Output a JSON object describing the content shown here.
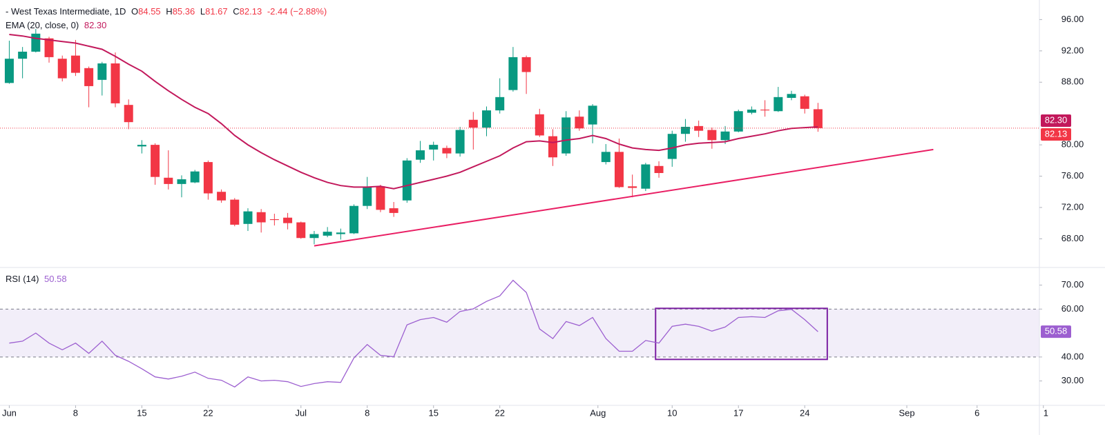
{
  "chart_data": [
    {
      "type": "candlestick",
      "title": "- West Texas Intermediate, 1D",
      "ohlc": [
        {
          "key": "O",
          "value": "84.55"
        },
        {
          "key": "H",
          "value": "85.36"
        },
        {
          "key": "L",
          "value": "81.67"
        },
        {
          "key": "C",
          "value": "82.13"
        }
      ],
      "change": "-2.44 (−2.88%)",
      "up_color": "#089981",
      "down_color": "#f23645",
      "open": [
        87.9,
        91.0,
        91.9,
        93.6,
        91.0,
        91.4,
        89.8,
        88.3,
        90.4,
        85.1,
        79.8,
        80.0,
        75.8,
        75.0,
        75.2,
        77.8,
        74.0,
        73.0,
        69.9,
        71.4,
        70.5,
        70.7,
        70.1,
        68.1,
        68.4,
        68.6,
        68.7,
        72.2,
        74.7,
        71.9,
        72.9,
        78.1,
        79.4,
        79.6,
        78.9,
        83.2,
        82.2,
        84.4,
        87.0,
        91.2,
        83.9,
        81.1,
        78.9,
        83.6,
        82.6,
        77.8,
        79.1,
        74.7,
        74.4,
        77.3,
        78.2,
        81.4,
        82.4,
        81.9,
        80.6,
        81.7,
        84.1,
        84.5,
        84.3,
        86.0,
        86.2,
        84.55
      ],
      "high": [
        93.3,
        92.5,
        94.8,
        93.8,
        91.4,
        93.4,
        90.0,
        90.6,
        91.8,
        85.8,
        80.6,
        80.2,
        79.3,
        76.1,
        76.8,
        78.0,
        74.3,
        73.2,
        71.9,
        71.8,
        71.2,
        71.3,
        70.2,
        69.0,
        69.5,
        69.3,
        72.4,
        75.9,
        74.9,
        72.7,
        78.3,
        80.5,
        80.4,
        79.9,
        82.3,
        84.2,
        84.9,
        88.5,
        92.5,
        91.4,
        84.6,
        82.0,
        84.3,
        84.4,
        85.2,
        80.1,
        80.8,
        76.2,
        77.7,
        77.9,
        81.8,
        83.3,
        83.1,
        82.2,
        82.4,
        84.5,
        84.9,
        85.7,
        87.4,
        86.9,
        86.4,
        85.36
      ],
      "low": [
        87.8,
        88.5,
        91.8,
        90.5,
        88.1,
        88.8,
        84.8,
        86.3,
        84.8,
        82.0,
        78.9,
        74.9,
        74.3,
        73.3,
        75.1,
        73.0,
        72.6,
        69.6,
        69.0,
        68.8,
        69.7,
        69.2,
        68.0,
        67.3,
        68.2,
        67.9,
        68.6,
        71.8,
        71.4,
        70.8,
        72.6,
        77.7,
        78.0,
        78.3,
        78.5,
        79.4,
        81.1,
        84.0,
        86.8,
        86.5,
        81.0,
        77.3,
        78.6,
        81.8,
        80.2,
        77.5,
        74.5,
        73.3,
        74.1,
        75.8,
        77.2,
        80.4,
        81.0,
        79.5,
        80.1,
        81.6,
        83.9,
        83.6,
        84.2,
        85.7,
        84.0,
        81.67
      ],
      "close": [
        91.0,
        91.9,
        94.2,
        91.2,
        88.5,
        89.2,
        87.5,
        90.4,
        85.3,
        82.9,
        80.0,
        75.9,
        75.0,
        75.6,
        76.6,
        73.8,
        72.9,
        69.8,
        71.5,
        70.1,
        70.4,
        70.0,
        68.1,
        68.6,
        68.9,
        68.8,
        72.2,
        74.6,
        71.7,
        71.3,
        78.0,
        79.3,
        80.0,
        78.9,
        81.9,
        82.2,
        84.4,
        86.1,
        91.2,
        89.3,
        81.2,
        78.4,
        83.5,
        82.1,
        85.0,
        79.1,
        74.6,
        74.5,
        77.5,
        76.4,
        81.4,
        82.3,
        81.8,
        80.6,
        81.7,
        84.3,
        84.5,
        84.4,
        86.1,
        86.5,
        84.6,
        82.13
      ],
      "last_close_label": "82.13",
      "ema": {
        "name": "EMA (20, close, 0)",
        "color": "#c2185b",
        "last_label": "82.30",
        "values": [
          94.1,
          93.9,
          93.6,
          93.4,
          93.2,
          93.0,
          92.6,
          92.2,
          91.3,
          90.3,
          89.4,
          88.1,
          86.9,
          85.8,
          84.8,
          84.0,
          82.7,
          81.2,
          80.0,
          79.0,
          78.1,
          77.3,
          76.5,
          75.8,
          75.2,
          74.8,
          74.6,
          74.6,
          74.7,
          74.4,
          74.8,
          75.2,
          75.6,
          76.0,
          76.5,
          77.2,
          77.9,
          78.6,
          79.6,
          80.4,
          80.5,
          80.3,
          80.6,
          80.8,
          81.2,
          80.8,
          80.1,
          79.6,
          79.4,
          79.3,
          79.6,
          80.0,
          80.2,
          80.3,
          80.4,
          80.8,
          81.1,
          81.4,
          81.8,
          82.1,
          82.2,
          82.3
        ]
      },
      "trendline": {
        "color": "#e91e63",
        "x": [
          23,
          69.7
        ],
        "y": [
          67.1,
          79.4
        ]
      },
      "xlim": [
        -0.7,
        77.7
      ],
      "ylim": [
        64.6,
        98.5
      ],
      "yticks": [
        {
          "value": 96,
          "label": "96.00"
        },
        {
          "value": 92,
          "label": "92.00"
        },
        {
          "value": 88,
          "label": "88.00"
        },
        {
          "value": 80,
          "label": "80.00"
        },
        {
          "value": 76,
          "label": "76.00"
        },
        {
          "value": 72,
          "label": "72.00"
        },
        {
          "value": 68,
          "label": "68.00"
        }
      ]
    },
    {
      "type": "line",
      "name": "RSI (14)",
      "color": "#9c5fd0",
      "last_label": "50.58",
      "values": [
        45.8,
        46.6,
        50.0,
        45.8,
        43.0,
        45.8,
        41.5,
        46.6,
        40.7,
        38.2,
        35.1,
        31.7,
        30.8,
        32.0,
        33.7,
        31.1,
        30.3,
        27.5,
        31.7,
        30.0,
        30.3,
        29.7,
        27.7,
        28.9,
        29.7,
        29.4,
        39.6,
        45.2,
        40.7,
        40.1,
        53.4,
        55.6,
        56.5,
        54.5,
        59.0,
        60.1,
        63.2,
        65.5,
        72.0,
        66.9,
        51.7,
        47.7,
        54.8,
        53.1,
        56.5,
        47.7,
        42.4,
        42.4,
        46.9,
        45.8,
        52.8,
        53.7,
        52.8,
        50.8,
        52.5,
        56.5,
        56.8,
        56.5,
        59.3,
        59.9,
        55.6,
        50.58
      ],
      "band": [
        40,
        60
      ],
      "box": {
        "color": "#7b1fa2",
        "x": [
          48.75,
          61.7
        ],
        "y": [
          39.0,
          60.3
        ]
      },
      "xlim": [
        -0.7,
        77.7
      ],
      "ylim": [
        20.4,
        76.2
      ],
      "yticks": [
        {
          "value": 70,
          "label": "70.00"
        },
        {
          "value": 60,
          "label": "60.00"
        },
        {
          "value": 40,
          "label": "40.00"
        },
        {
          "value": 30,
          "label": "30.00"
        }
      ],
      "xticks": [
        {
          "value": 0,
          "label": "Jun"
        },
        {
          "value": 5,
          "label": "8"
        },
        {
          "value": 10,
          "label": "15"
        },
        {
          "value": 15,
          "label": "22"
        },
        {
          "value": 22,
          "label": "Jul"
        },
        {
          "value": 27,
          "label": "8"
        },
        {
          "value": 32,
          "label": "15"
        },
        {
          "value": 37,
          "label": "22"
        },
        {
          "value": 44.4,
          "label": "Aug"
        },
        {
          "value": 50,
          "label": "10"
        },
        {
          "value": 55,
          "label": "17"
        },
        {
          "value": 60,
          "label": "24"
        },
        {
          "value": 67.7,
          "label": "Sep"
        },
        {
          "value": 73,
          "label": "6"
        },
        {
          "value": 78,
          "label": "1"
        }
      ]
    }
  ]
}
